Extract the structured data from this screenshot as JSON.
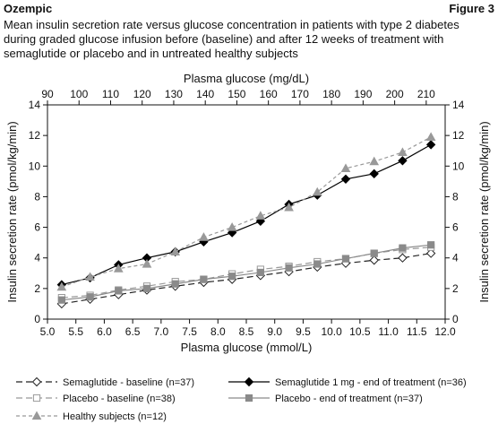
{
  "header": {
    "brand": "Ozempic",
    "figure": "Figure 3",
    "caption": "Mean insulin secretion rate versus glucose concentration in patients with type 2 diabetes during graded glucose infusion before (baseline) and after 12 weeks of treatment with semaglutide or placebo and in untreated healthy subjects"
  },
  "chart_data": {
    "type": "line",
    "xlabel": "Plasma glucose (mmol/L)",
    "x2label": "Plasma glucose (mg/dL)",
    "ylabel": "Insulin secretion rate (pmol/kg/min)",
    "xlim": [
      5.0,
      12.0
    ],
    "ylim": [
      0,
      14
    ],
    "x2lim": [
      90,
      216
    ],
    "xticks": [
      "5.0",
      "5.5",
      "6.0",
      "6.5",
      "7.0",
      "7.5",
      "8.0",
      "8.5",
      "9.0",
      "9.5",
      "10.0",
      "10.5",
      "11.0",
      "11.5",
      "12.0"
    ],
    "x2ticks": [
      "90",
      "100",
      "110",
      "120",
      "130",
      "140",
      "150",
      "160",
      "170",
      "180",
      "190",
      "200",
      "210"
    ],
    "yticks": [
      "0",
      "2",
      "4",
      "6",
      "8",
      "10",
      "12",
      "14"
    ],
    "grid": false,
    "legend_position": "bottom",
    "series": [
      {
        "name": "Semaglutide - baseline (n=37)",
        "color": "#222222",
        "dash": "7,4",
        "marker": "diamond-open",
        "x": [
          5.25,
          5.75,
          6.25,
          6.75,
          7.25,
          7.75,
          8.25,
          8.75,
          9.25,
          9.75,
          10.25,
          10.75,
          11.25,
          11.75
        ],
        "y": [
          1.0,
          1.3,
          1.6,
          1.9,
          2.15,
          2.4,
          2.6,
          2.85,
          3.1,
          3.4,
          3.65,
          3.85,
          4.0,
          4.3
        ]
      },
      {
        "name": "Semaglutide 1 mg - end of treatment (n=36)",
        "color": "#000000",
        "dash": "",
        "marker": "diamond-filled",
        "x": [
          5.25,
          5.75,
          6.25,
          6.75,
          7.25,
          7.75,
          8.25,
          8.75,
          9.25,
          9.75,
          10.25,
          10.75,
          11.25,
          11.75
        ],
        "y": [
          2.25,
          2.7,
          3.55,
          4.0,
          4.4,
          5.05,
          5.65,
          6.4,
          7.5,
          8.1,
          9.15,
          9.5,
          10.35,
          11.4
        ]
      },
      {
        "name": "Placebo - baseline (n=38)",
        "color": "#999999",
        "dash": "7,4",
        "marker": "square-open",
        "x": [
          5.25,
          5.75,
          6.25,
          6.75,
          7.25,
          7.75,
          8.25,
          8.75,
          9.25,
          9.75,
          10.25,
          10.75,
          11.25,
          11.75
        ],
        "y": [
          1.4,
          1.55,
          1.9,
          2.15,
          2.45,
          2.6,
          2.95,
          3.25,
          3.45,
          3.75,
          3.95,
          4.3,
          4.55,
          4.7
        ]
      },
      {
        "name": "Placebo - end of treatment (n=37)",
        "color": "#8a8a8a",
        "dash": "",
        "marker": "square-filled",
        "x": [
          5.25,
          5.75,
          6.25,
          6.75,
          7.25,
          7.75,
          8.25,
          8.75,
          9.25,
          9.75,
          10.25,
          10.75,
          11.25,
          11.75
        ],
        "y": [
          1.25,
          1.45,
          1.85,
          2.0,
          2.3,
          2.6,
          2.8,
          3.05,
          3.35,
          3.6,
          3.95,
          4.3,
          4.65,
          4.85
        ]
      },
      {
        "name": "Healthy subjects (n=12)",
        "color": "#999999",
        "dash": "4,3",
        "marker": "triangle-filled",
        "x": [
          5.25,
          5.75,
          6.25,
          6.75,
          7.25,
          7.75,
          8.25,
          8.75,
          9.25,
          9.75,
          10.25,
          10.75,
          11.25,
          11.75
        ],
        "y": [
          2.1,
          2.75,
          3.3,
          3.6,
          4.4,
          5.35,
          6.0,
          6.75,
          7.3,
          8.3,
          9.85,
          10.3,
          10.9,
          11.9
        ]
      }
    ]
  }
}
